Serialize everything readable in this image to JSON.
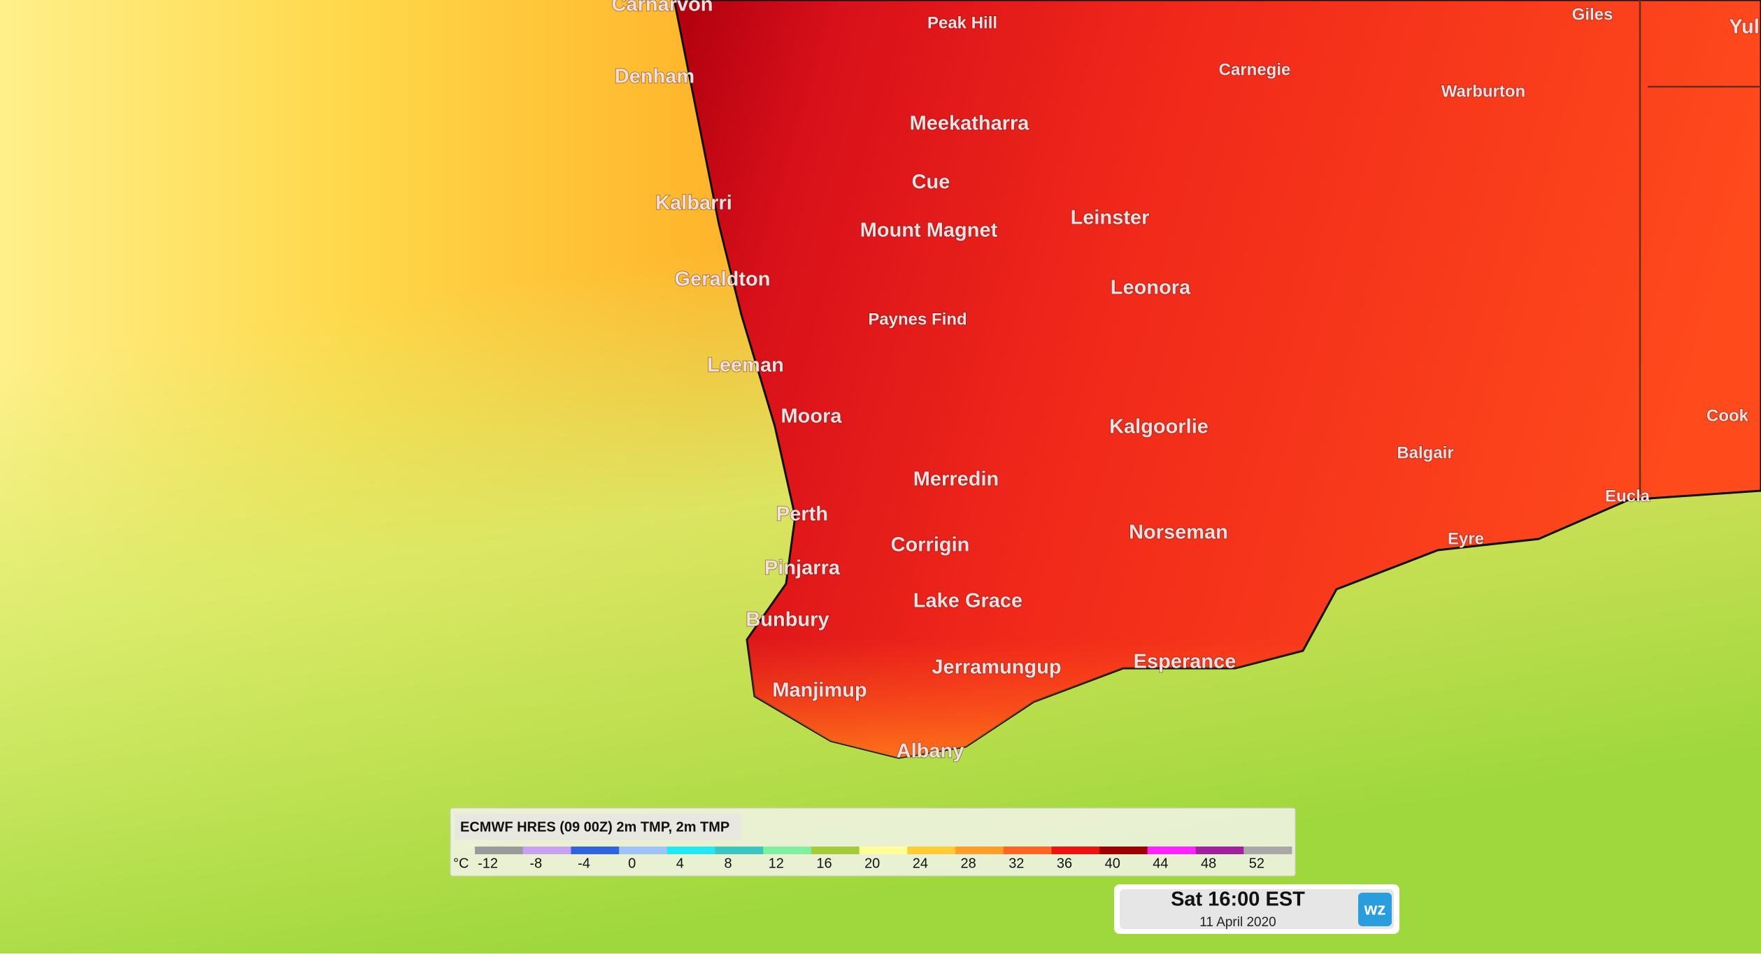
{
  "map": {
    "places": [
      {
        "name": "Carnarvon"
      },
      {
        "name": "Peak Hill"
      },
      {
        "name": "Giles"
      },
      {
        "name": "Yul"
      },
      {
        "name": "Denham"
      },
      {
        "name": "Carnegie"
      },
      {
        "name": "Warburton"
      },
      {
        "name": "Meekatharra"
      },
      {
        "name": "Cue"
      },
      {
        "name": "Kalbarri"
      },
      {
        "name": "Mount Magnet"
      },
      {
        "name": "Leinster"
      },
      {
        "name": "Geraldton"
      },
      {
        "name": "Leonora"
      },
      {
        "name": "Paynes Find"
      },
      {
        "name": "Leeman"
      },
      {
        "name": "Moora"
      },
      {
        "name": "Kalgoorlie"
      },
      {
        "name": "Cook"
      },
      {
        "name": "Balgair"
      },
      {
        "name": "Merredin"
      },
      {
        "name": "Eucla"
      },
      {
        "name": "Perth"
      },
      {
        "name": "Norseman"
      },
      {
        "name": "Eyre"
      },
      {
        "name": "Corrigin"
      },
      {
        "name": "Pinjarra"
      },
      {
        "name": "Lake Grace"
      },
      {
        "name": "Bunbury"
      },
      {
        "name": "Jerramungup"
      },
      {
        "name": "Esperance"
      },
      {
        "name": "Manjimup"
      },
      {
        "name": "Albany"
      }
    ]
  },
  "legend": {
    "title": "ECMWF HRES (09 00Z) 2m TMP, 2m TMP",
    "unit": "°C",
    "ticks": [
      -12,
      -8,
      -4,
      0,
      4,
      8,
      12,
      16,
      20,
      24,
      28,
      32,
      36,
      40,
      44,
      48,
      52
    ],
    "colors": [
      "#9a9a9a",
      "#c8a2f0",
      "#2f63e0",
      "#9fc3f6",
      "#22e8f2",
      "#3cc4c0",
      "#7ff0a0",
      "#a4cc3a",
      "#ffff9a",
      "#ffcc33",
      "#ff9d2a",
      "#ff6420",
      "#ee1212",
      "#9e0000",
      "#ff22ff",
      "#a0209e",
      "#a8a8a8"
    ]
  },
  "timestamp": {
    "time": "Sat 16:00 EST",
    "date": "11 April 2020"
  },
  "logo": "wz"
}
